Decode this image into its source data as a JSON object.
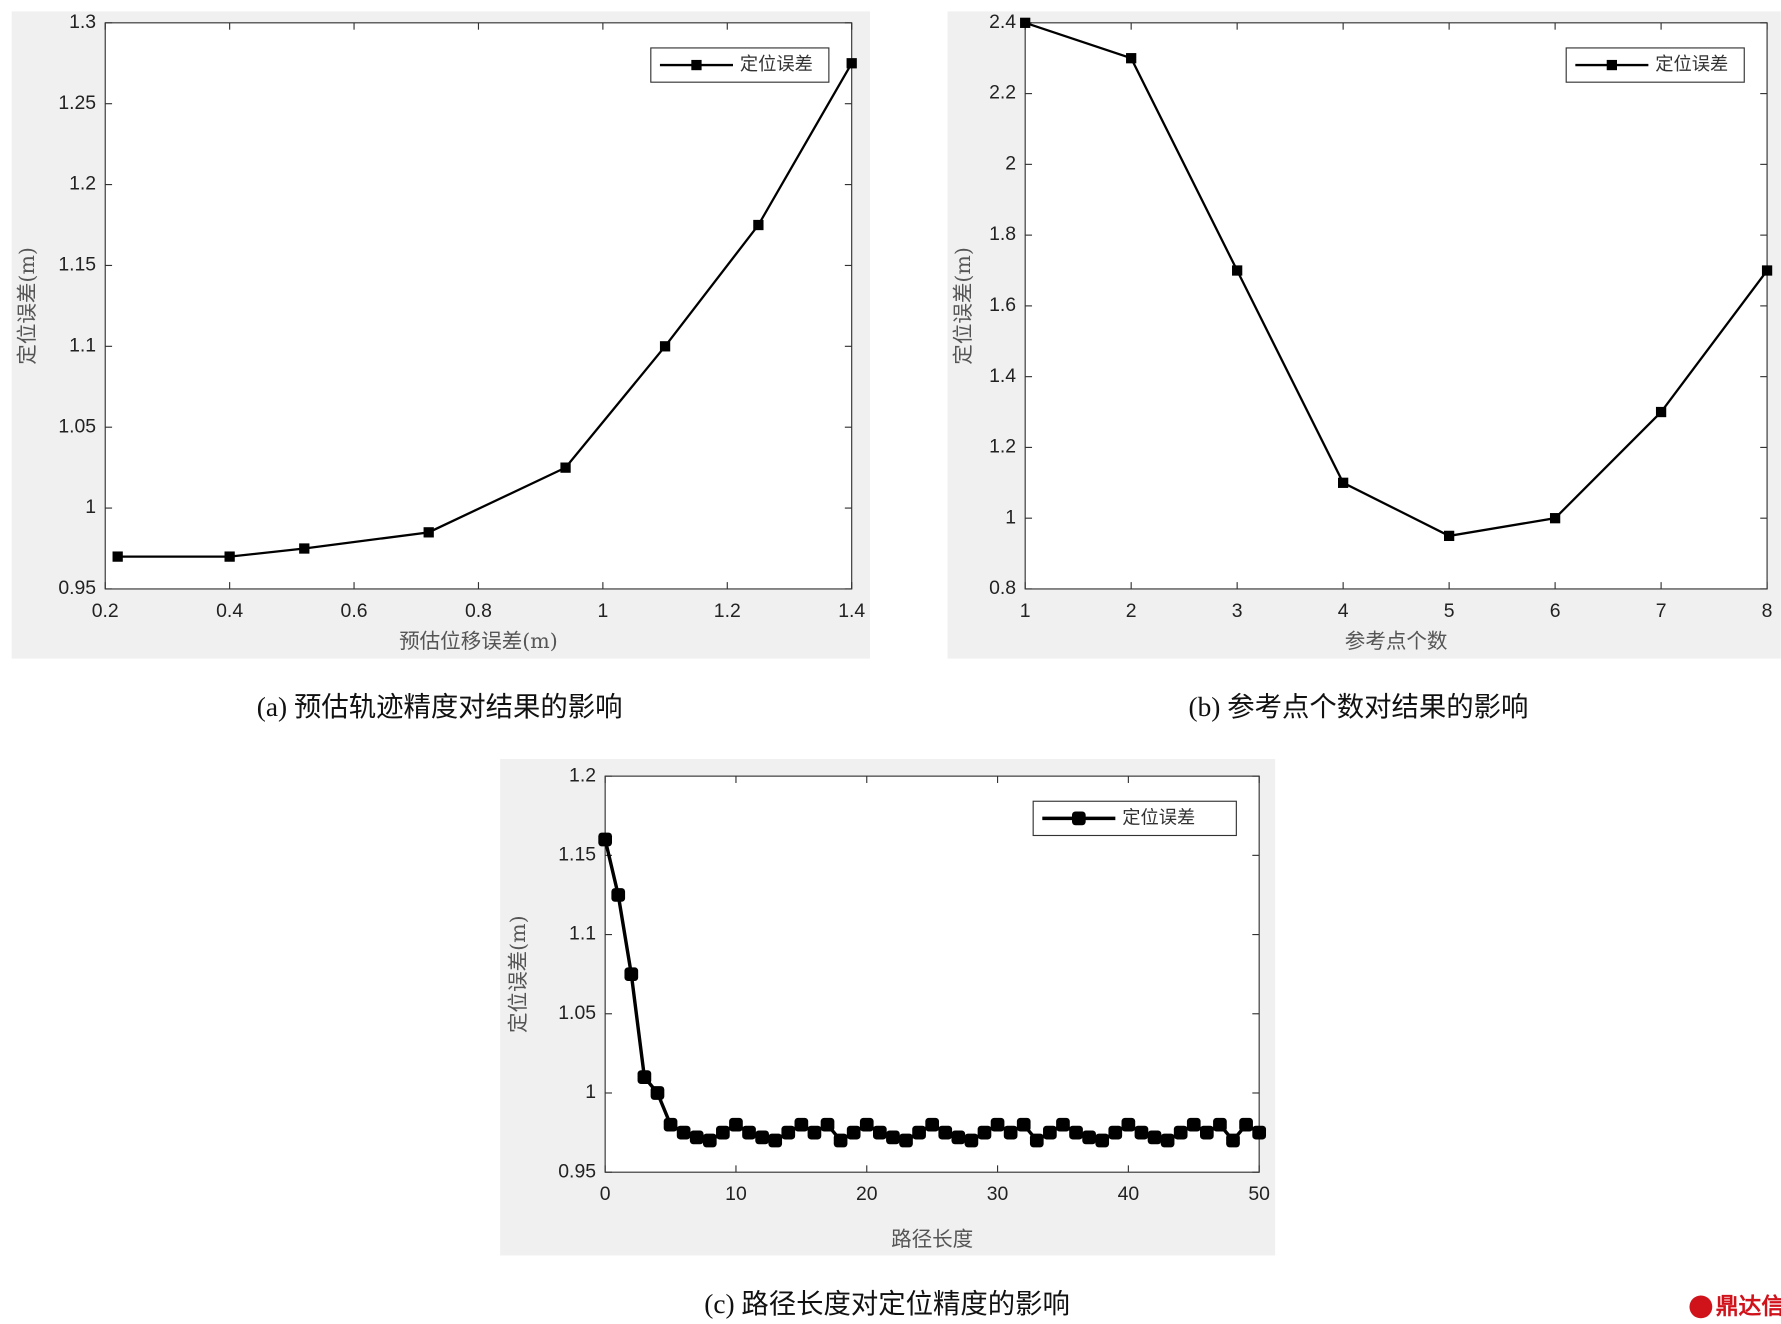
{
  "chart_data": [
    {
      "type": "line",
      "caption": "(a) 预估轨迹精度对结果的影响",
      "xlabel": "预估位移误差(m)",
      "ylabel": "定位误差(m)",
      "x": [
        0.22,
        0.4,
        0.52,
        0.72,
        0.94,
        1.1,
        1.25,
        1.4
      ],
      "series": [
        {
          "name": "定位误差",
          "color": "#000000",
          "values": [
            0.97,
            0.97,
            0.975,
            0.985,
            1.025,
            1.1,
            1.175,
            1.275
          ]
        }
      ],
      "xlim": [
        0.2,
        1.4
      ],
      "xticks": [
        0.2,
        0.4,
        0.6,
        0.8,
        1,
        1.2,
        1.4
      ],
      "ylim": [
        0.95,
        1.3
      ],
      "yticks": [
        0.95,
        1,
        1.05,
        1.1,
        1.15,
        1.2,
        1.25,
        1.3
      ],
      "legend": "upper right"
    },
    {
      "type": "line",
      "caption": "(b) 参考点个数对结果的影响",
      "xlabel": "参考点个数",
      "ylabel": "定位误差(m)",
      "x": [
        1,
        2,
        3,
        4,
        5,
        6,
        7,
        8
      ],
      "series": [
        {
          "name": "定位误差",
          "color": "#000000",
          "values": [
            2.4,
            2.3,
            1.7,
            1.1,
            0.95,
            1.0,
            1.3,
            1.7
          ]
        }
      ],
      "xlim": [
        1,
        8
      ],
      "xticks": [
        1,
        2,
        3,
        4,
        5,
        6,
        7,
        8
      ],
      "ylim": [
        0.8,
        2.4
      ],
      "yticks": [
        0.8,
        1,
        1.2,
        1.4,
        1.6,
        1.8,
        2,
        2.2,
        2.4
      ],
      "legend": "upper right"
    },
    {
      "type": "line",
      "caption": "(c) 路径长度对定位精度的影响",
      "xlabel": "路径长度",
      "ylabel": "定位误差(m)",
      "x": [
        0,
        1,
        2,
        3,
        4,
        5,
        6,
        7,
        8,
        9,
        10,
        11,
        12,
        13,
        14,
        15,
        16,
        17,
        18,
        19,
        20,
        21,
        22,
        23,
        24,
        25,
        26,
        27,
        28,
        29,
        30,
        31,
        32,
        33,
        34,
        35,
        36,
        37,
        38,
        39,
        40,
        41,
        42,
        43,
        44,
        45,
        46,
        47,
        48,
        49,
        50
      ],
      "series": [
        {
          "name": "定位误差",
          "color": "#000000",
          "values": [
            1.16,
            1.125,
            1.075,
            1.01,
            1.0,
            0.98,
            0.975,
            0.972,
            0.97,
            0.975,
            0.98,
            0.975,
            0.972,
            0.97,
            0.975,
            0.98,
            0.975,
            0.98,
            0.97,
            0.975,
            0.98,
            0.975,
            0.972,
            0.97,
            0.975,
            0.98,
            0.975,
            0.972,
            0.97,
            0.975,
            0.98,
            0.975,
            0.98,
            0.97,
            0.975,
            0.98,
            0.975,
            0.972,
            0.97,
            0.975,
            0.98,
            0.975,
            0.972,
            0.97,
            0.975,
            0.98,
            0.975,
            0.98,
            0.97,
            0.98,
            0.975
          ]
        }
      ],
      "xlim": [
        0,
        50
      ],
      "xticks": [
        0,
        10,
        20,
        30,
        40,
        50
      ],
      "ylim": [
        0.95,
        1.2
      ],
      "yticks": [
        0.95,
        1,
        1.05,
        1.1,
        1.15,
        1.2
      ],
      "legend": "upper right"
    }
  ],
  "watermark": "鼎达信"
}
